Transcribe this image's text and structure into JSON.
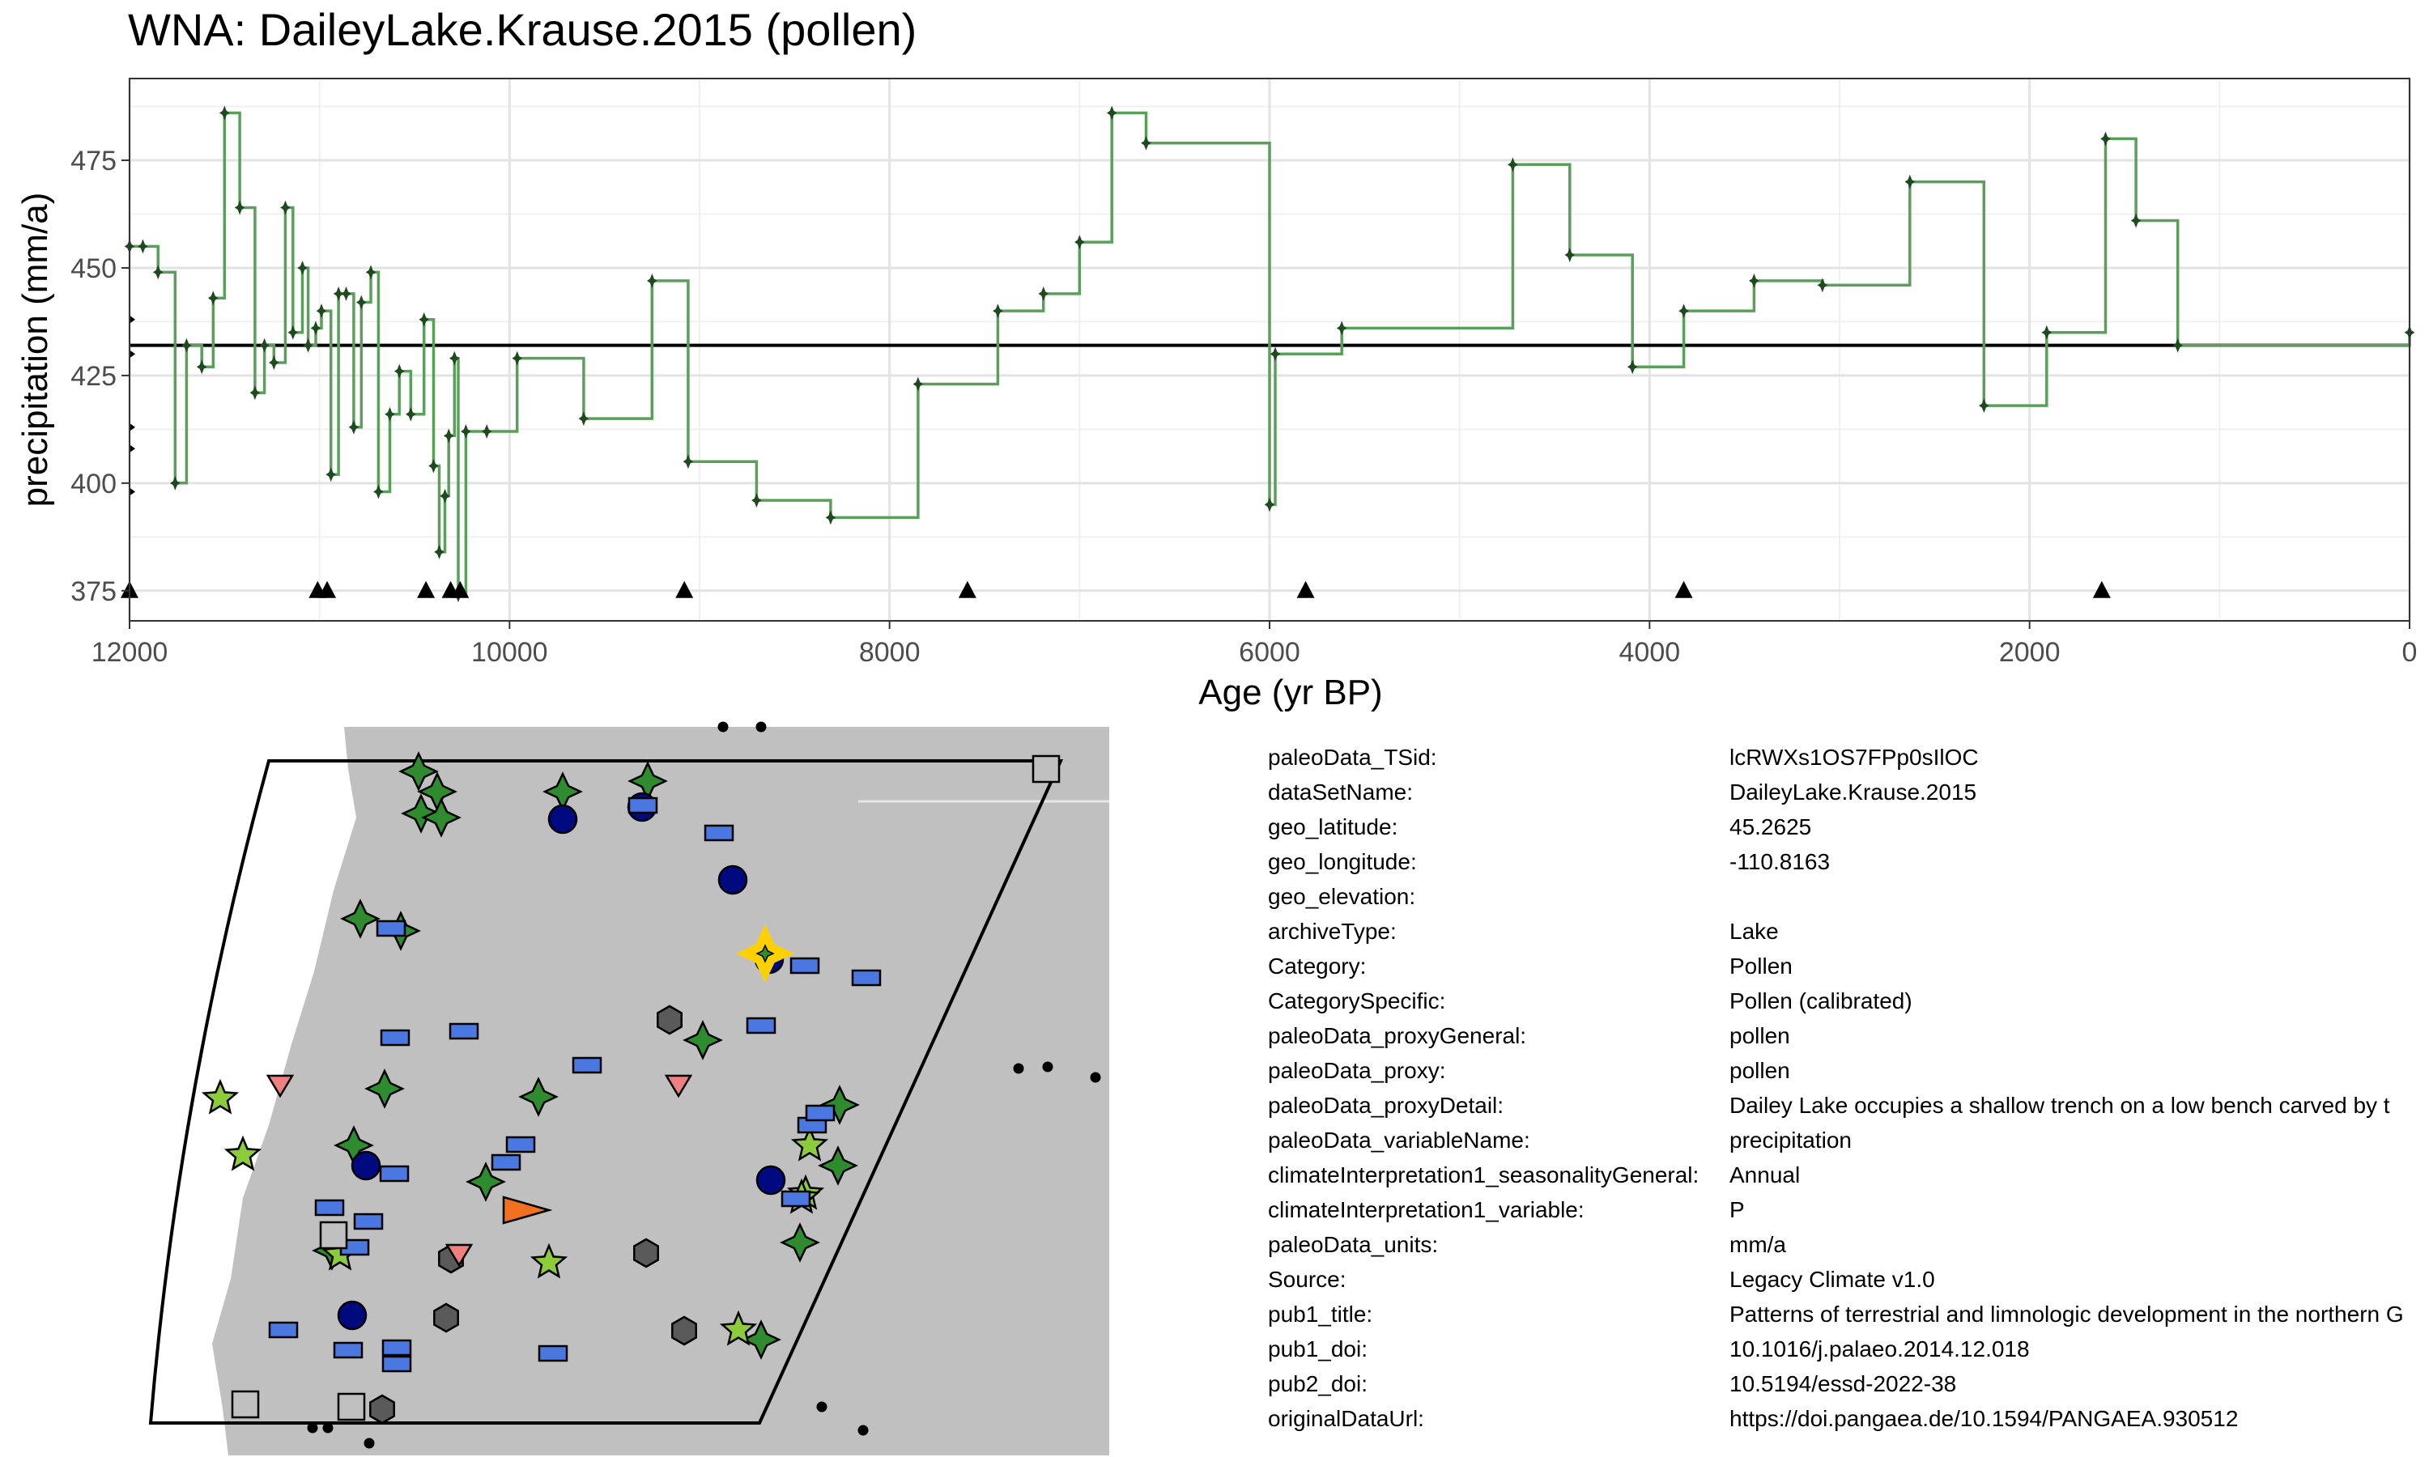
{
  "title": "WNA: DaileyLake.Krause.2015 (pollen)",
  "chart_data": {
    "type": "line",
    "step": true,
    "xlabel": "Age (yr BP)",
    "ylabel": "precipitation (mm/a)",
    "xlim": [
      12000,
      0
    ],
    "ylim": [
      368,
      494
    ],
    "x_reversed": true,
    "x_ticks": [
      12000,
      10000,
      8000,
      6000,
      4000,
      2000,
      0
    ],
    "y_ticks": [
      375,
      400,
      425,
      450,
      475
    ],
    "grid": true,
    "mean_line": 432,
    "line_color": "#5aa05a",
    "point_color": "#1f4a1f",
    "series": [
      {
        "values": [
          [
            12000,
            455
          ],
          [
            11930,
            455
          ],
          [
            11850,
            449
          ],
          [
            11760,
            400
          ],
          [
            11700,
            432
          ],
          [
            11620,
            427
          ],
          [
            11560,
            443
          ],
          [
            11500,
            486
          ],
          [
            11420,
            464
          ],
          [
            11340,
            421
          ],
          [
            11290,
            432
          ],
          [
            11240,
            428
          ],
          [
            11180,
            464
          ],
          [
            11140,
            435
          ],
          [
            11090,
            450
          ],
          [
            11060,
            432
          ],
          [
            11020,
            436
          ],
          [
            10990,
            440
          ],
          [
            10940,
            402
          ],
          [
            10900,
            444
          ],
          [
            10860,
            444
          ],
          [
            10820,
            413
          ],
          [
            10780,
            442
          ],
          [
            10730,
            449
          ],
          [
            10690,
            398
          ],
          [
            10630,
            416
          ],
          [
            10580,
            426
          ],
          [
            10520,
            416
          ],
          [
            10450,
            438
          ],
          [
            10400,
            404
          ],
          [
            10370,
            384
          ],
          [
            10340,
            397
          ],
          [
            10320,
            411
          ],
          [
            10290,
            429
          ],
          [
            10270,
            374
          ],
          [
            10230,
            412
          ],
          [
            10120,
            412
          ],
          [
            9960,
            429
          ],
          [
            9610,
            415
          ],
          [
            9250,
            447
          ],
          [
            9060,
            405
          ],
          [
            8700,
            396
          ],
          [
            8310,
            392
          ],
          [
            7850,
            423
          ],
          [
            7430,
            440
          ],
          [
            7190,
            444
          ],
          [
            7000,
            456
          ],
          [
            6830,
            486
          ],
          [
            6650,
            479
          ],
          [
            6000,
            395
          ],
          [
            5970,
            430
          ],
          [
            5620,
            436
          ],
          [
            4720,
            474
          ],
          [
            4420,
            453
          ],
          [
            4090,
            427
          ],
          [
            3820,
            440
          ],
          [
            3450,
            447
          ],
          [
            3090,
            446
          ],
          [
            2630,
            470
          ],
          [
            2240,
            418
          ],
          [
            1910,
            435
          ],
          [
            1600,
            480
          ],
          [
            1440,
            461
          ],
          [
            1220,
            432
          ],
          [
            0,
            435
          ]
        ]
      }
    ],
    "age_markers": [
      12000,
      11010,
      10960,
      10440,
      10310,
      10260,
      9080,
      7590,
      5810,
      3820,
      1620
    ]
  },
  "map": {
    "region": "western North America",
    "legend_note": "",
    "colors": {
      "land": "#c0c0c0",
      "frame": "#000000",
      "dark_star": "#2e8b2e",
      "light_star": "#8ccc3a",
      "navy_circle": "#000a80",
      "blue_rect": "#4a78e0",
      "gray_hex": "#5a5a5a",
      "pink_tri": "#f08080",
      "orange_tri": "#f07020",
      "gray_square": "#c0c0c0",
      "highlight": "#ffd000"
    }
  },
  "metadata": [
    {
      "key": "paleoData_TSid:",
      "value": "lcRWXs1OS7FPp0sIlOC"
    },
    {
      "key": "dataSetName:",
      "value": "DaileyLake.Krause.2015"
    },
    {
      "key": "geo_latitude:",
      "value": "45.2625"
    },
    {
      "key": "geo_longitude:",
      "value": "-110.8163"
    },
    {
      "key": "geo_elevation:",
      "value": ""
    },
    {
      "key": "archiveType:",
      "value": "Lake"
    },
    {
      "key": "Category:",
      "value": "Pollen"
    },
    {
      "key": "CategorySpecific:",
      "value": "Pollen (calibrated)"
    },
    {
      "key": "paleoData_proxyGeneral:",
      "value": "pollen"
    },
    {
      "key": "paleoData_proxy:",
      "value": "pollen"
    },
    {
      "key": "paleoData_proxyDetail:",
      "value": "Dailey Lake occupies a shallow trench on a low bench carved by t"
    },
    {
      "key": "paleoData_variableName:",
      "value": "precipitation"
    },
    {
      "key": "climateInterpretation1_seasonalityGeneral:",
      "value": "Annual"
    },
    {
      "key": "climateInterpretation1_variable:",
      "value": "P"
    },
    {
      "key": "paleoData_units:",
      "value": "mm/a"
    },
    {
      "key": "Source:",
      "value": "Legacy Climate v1.0"
    },
    {
      "key": "pub1_title:",
      "value": "Patterns of terrestrial and limnologic development in the northern G"
    },
    {
      "key": "pub1_doi:",
      "value": "10.1016/j.palaeo.2014.12.018"
    },
    {
      "key": "pub2_doi:",
      "value": "10.5194/essd-2022-38"
    },
    {
      "key": "originalDataUrl:",
      "value": "https://doi.pangaea.de/10.1594/PANGAEA.930512"
    }
  ]
}
